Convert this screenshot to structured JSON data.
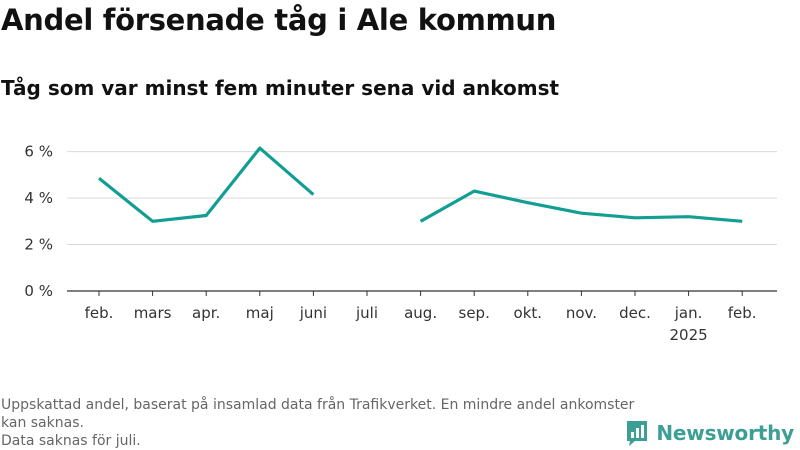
{
  "header": {
    "title": "Andel försenade tåg i Ale kommun",
    "subtitle": "Tåg som var minst fem minuter sena vid ankomst"
  },
  "footnote": {
    "line1": "Uppskattad andel, baserat på insamlad data från Trafikverket. En mindre andel ankomster kan saknas.",
    "line2": "Data saknas för juli."
  },
  "brand": {
    "name": "Newsworthy",
    "color": "#3d9e94"
  },
  "chart_data": {
    "type": "line",
    "title": "Andel försenade tåg i Ale kommun",
    "subtitle": "Tåg som var minst fem minuter sena vid ankomst",
    "categories": [
      "feb.",
      "mars",
      "apr.",
      "maj",
      "juni",
      "juli",
      "aug.",
      "sep.",
      "okt.",
      "nov.",
      "dec.",
      "jan.",
      "feb."
    ],
    "category_sublabels": {
      "11": "2025"
    },
    "series": [
      {
        "values": [
          4.85,
          3.0,
          3.25,
          6.15,
          4.15,
          null,
          3.0,
          4.3,
          3.8,
          3.35,
          3.15,
          3.2,
          3.0
        ],
        "color": "#139e94"
      }
    ],
    "ylim": [
      0,
      6.5
    ],
    "yticks": [
      0,
      2,
      4,
      6
    ],
    "ytick_labels": [
      "0 %",
      "2 %",
      "4 %",
      "6 %"
    ],
    "xlabel": "",
    "ylabel": "",
    "grid": true,
    "legend": "none"
  }
}
